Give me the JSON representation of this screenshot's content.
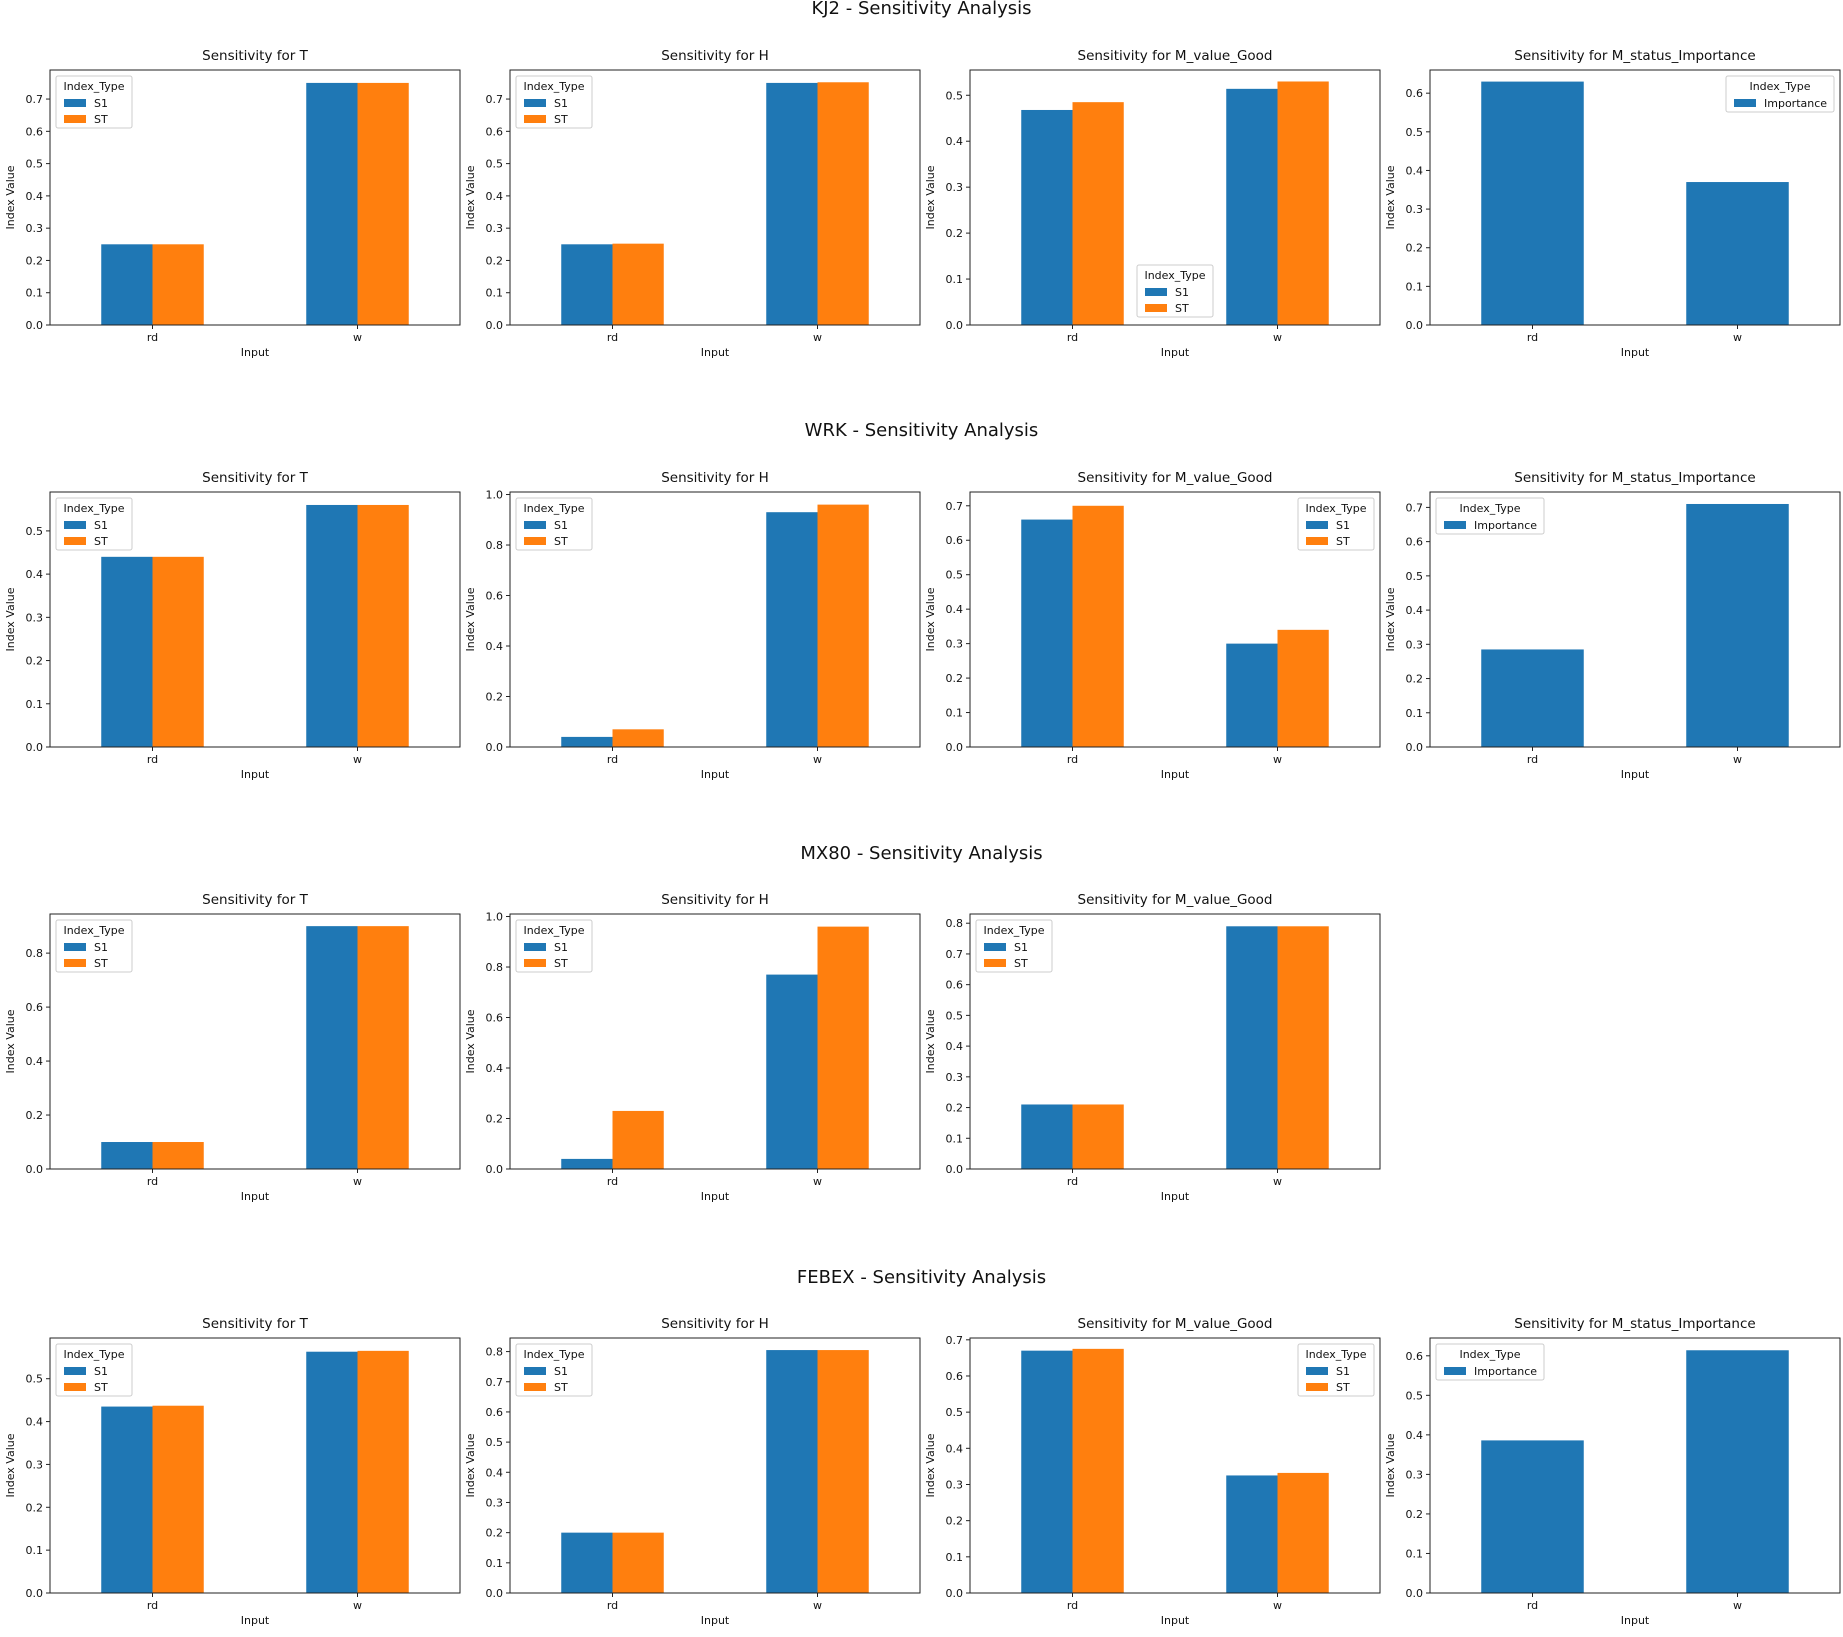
{
  "colors": {
    "s1": "#1f77b4",
    "st": "#ff7f0e",
    "importance": "#1f77b4",
    "axis": "#222222",
    "legend_border": "#cccccc"
  },
  "chart_data": [
    {
      "group": "KJ2 - Sensitivity Analysis",
      "panels": [
        {
          "type": "bar",
          "title": "Sensitivity for T",
          "categories": [
            "rd",
            "w"
          ],
          "xlabel": "Input",
          "ylabel": "Index Value",
          "ylim": [
            0,
            0.79
          ],
          "yticks": [
            "0.0",
            "0.1",
            "0.2",
            "0.3",
            "0.4",
            "0.5",
            "0.6",
            "0.7"
          ],
          "legend": {
            "title": "Index_Type",
            "loc": "upper-left"
          },
          "series": [
            {
              "name": "S1",
              "color": "#1f77b4",
              "values": [
                0.25,
                0.75
              ]
            },
            {
              "name": "ST",
              "color": "#ff7f0e",
              "values": [
                0.25,
                0.75
              ]
            }
          ]
        },
        {
          "type": "bar",
          "title": "Sensitivity for H",
          "categories": [
            "rd",
            "w"
          ],
          "xlabel": "Input",
          "ylabel": "Index Value",
          "ylim": [
            0,
            0.79
          ],
          "yticks": [
            "0.0",
            "0.1",
            "0.2",
            "0.3",
            "0.4",
            "0.5",
            "0.6",
            "0.7"
          ],
          "legend": {
            "title": "Index_Type",
            "loc": "upper-left"
          },
          "series": [
            {
              "name": "S1",
              "color": "#1f77b4",
              "values": [
                0.25,
                0.75
              ]
            },
            {
              "name": "ST",
              "color": "#ff7f0e",
              "values": [
                0.252,
                0.752
              ]
            }
          ]
        },
        {
          "type": "bar",
          "title": "Sensitivity for M_value_Good",
          "categories": [
            "rd",
            "w"
          ],
          "xlabel": "Input",
          "ylabel": "Index Value",
          "ylim": [
            0,
            0.555
          ],
          "yticks": [
            "0.0",
            "0.1",
            "0.2",
            "0.3",
            "0.4",
            "0.5"
          ],
          "legend": {
            "title": "Index_Type",
            "loc": "lower-center"
          },
          "series": [
            {
              "name": "S1",
              "color": "#1f77b4",
              "values": [
                0.468,
                0.514
              ]
            },
            {
              "name": "ST",
              "color": "#ff7f0e",
              "values": [
                0.485,
                0.53
              ]
            }
          ]
        },
        {
          "type": "bar",
          "title": "Sensitivity for M_status_Importance",
          "categories": [
            "rd",
            "w"
          ],
          "xlabel": "Input",
          "ylabel": "Index Value",
          "ylim": [
            0,
            0.66
          ],
          "yticks": [
            "0.0",
            "0.1",
            "0.2",
            "0.3",
            "0.4",
            "0.5",
            "0.6"
          ],
          "legend": {
            "title": "Index_Type",
            "loc": "upper-right"
          },
          "series": [
            {
              "name": "Importance",
              "color": "#1f77b4",
              "values": [
                0.63,
                0.37
              ]
            }
          ]
        }
      ]
    },
    {
      "group": "WRK - Sensitivity Analysis",
      "panels": [
        {
          "type": "bar",
          "title": "Sensitivity for T",
          "categories": [
            "rd",
            "w"
          ],
          "xlabel": "Input",
          "ylabel": "Index Value",
          "ylim": [
            0,
            0.59
          ],
          "yticks": [
            "0.0",
            "0.1",
            "0.2",
            "0.3",
            "0.4",
            "0.5"
          ],
          "legend": {
            "title": "Index_Type",
            "loc": "upper-left"
          },
          "series": [
            {
              "name": "S1",
              "color": "#1f77b4",
              "values": [
                0.44,
                0.56
              ]
            },
            {
              "name": "ST",
              "color": "#ff7f0e",
              "values": [
                0.44,
                0.56
              ]
            }
          ]
        },
        {
          "type": "bar",
          "title": "Sensitivity for H",
          "categories": [
            "rd",
            "w"
          ],
          "xlabel": "Input",
          "ylabel": "Index Value",
          "ylim": [
            0,
            1.01
          ],
          "yticks": [
            "0.0",
            "0.2",
            "0.4",
            "0.6",
            "0.8",
            "1.0"
          ],
          "legend": {
            "title": "Index_Type",
            "loc": "upper-left"
          },
          "series": [
            {
              "name": "S1",
              "color": "#1f77b4",
              "values": [
                0.04,
                0.93
              ]
            },
            {
              "name": "ST",
              "color": "#ff7f0e",
              "values": [
                0.07,
                0.96
              ]
            }
          ]
        },
        {
          "type": "bar",
          "title": "Sensitivity for M_value_Good",
          "categories": [
            "rd",
            "w"
          ],
          "xlabel": "Input",
          "ylabel": "Index Value",
          "ylim": [
            0,
            0.74
          ],
          "yticks": [
            "0.0",
            "0.1",
            "0.2",
            "0.3",
            "0.4",
            "0.5",
            "0.6",
            "0.7"
          ],
          "legend": {
            "title": "Index_Type",
            "loc": "upper-right"
          },
          "series": [
            {
              "name": "S1",
              "color": "#1f77b4",
              "values": [
                0.66,
                0.3
              ]
            },
            {
              "name": "ST",
              "color": "#ff7f0e",
              "values": [
                0.7,
                0.34
              ]
            }
          ]
        },
        {
          "type": "bar",
          "title": "Sensitivity for M_status_Importance",
          "categories": [
            "rd",
            "w"
          ],
          "xlabel": "Input",
          "ylabel": "Index Value",
          "ylim": [
            0,
            0.745
          ],
          "yticks": [
            "0.0",
            "0.1",
            "0.2",
            "0.3",
            "0.4",
            "0.5",
            "0.6",
            "0.7"
          ],
          "legend": {
            "title": "Index_Type",
            "loc": "upper-left"
          },
          "series": [
            {
              "name": "Importance",
              "color": "#1f77b4",
              "values": [
                0.285,
                0.71
              ]
            }
          ]
        }
      ]
    },
    {
      "group": "MX80 - Sensitivity Analysis",
      "panels": [
        {
          "type": "bar",
          "title": "Sensitivity for T",
          "categories": [
            "rd",
            "w"
          ],
          "xlabel": "Input",
          "ylabel": "Index Value",
          "ylim": [
            0,
            0.945
          ],
          "yticks": [
            "0.0",
            "0.2",
            "0.4",
            "0.6",
            "0.8"
          ],
          "legend": {
            "title": "Index_Type",
            "loc": "upper-left"
          },
          "series": [
            {
              "name": "S1",
              "color": "#1f77b4",
              "values": [
                0.1,
                0.9
              ]
            },
            {
              "name": "ST",
              "color": "#ff7f0e",
              "values": [
                0.1,
                0.9
              ]
            }
          ]
        },
        {
          "type": "bar",
          "title": "Sensitivity for H",
          "categories": [
            "rd",
            "w"
          ],
          "xlabel": "Input",
          "ylabel": "Index Value",
          "ylim": [
            0,
            1.01
          ],
          "yticks": [
            "0.0",
            "0.2",
            "0.4",
            "0.6",
            "0.8",
            "1.0"
          ],
          "legend": {
            "title": "Index_Type",
            "loc": "upper-left"
          },
          "series": [
            {
              "name": "S1",
              "color": "#1f77b4",
              "values": [
                0.04,
                0.77
              ]
            },
            {
              "name": "ST",
              "color": "#ff7f0e",
              "values": [
                0.23,
                0.96
              ]
            }
          ]
        },
        {
          "type": "bar",
          "title": "Sensitivity for M_value_Good",
          "categories": [
            "rd",
            "w"
          ],
          "xlabel": "Input",
          "ylabel": "Index Value",
          "ylim": [
            0,
            0.83
          ],
          "yticks": [
            "0.0",
            "0.1",
            "0.2",
            "0.3",
            "0.4",
            "0.5",
            "0.6",
            "0.7",
            "0.8"
          ],
          "legend": {
            "title": "Index_Type",
            "loc": "upper-left"
          },
          "series": [
            {
              "name": "S1",
              "color": "#1f77b4",
              "values": [
                0.21,
                0.79
              ]
            },
            {
              "name": "ST",
              "color": "#ff7f0e",
              "values": [
                0.21,
                0.79
              ]
            }
          ]
        }
      ]
    },
    {
      "group": "FEBEX - Sensitivity Analysis",
      "panels": [
        {
          "type": "bar",
          "title": "Sensitivity for T",
          "categories": [
            "rd",
            "w"
          ],
          "xlabel": "Input",
          "ylabel": "Index Value",
          "ylim": [
            0,
            0.595
          ],
          "yticks": [
            "0.0",
            "0.1",
            "0.2",
            "0.3",
            "0.4",
            "0.5"
          ],
          "legend": {
            "title": "Index_Type",
            "loc": "upper-left"
          },
          "series": [
            {
              "name": "S1",
              "color": "#1f77b4",
              "values": [
                0.435,
                0.563
              ]
            },
            {
              "name": "ST",
              "color": "#ff7f0e",
              "values": [
                0.437,
                0.565
              ]
            }
          ]
        },
        {
          "type": "bar",
          "title": "Sensitivity for H",
          "categories": [
            "rd",
            "w"
          ],
          "xlabel": "Input",
          "ylabel": "Index Value",
          "ylim": [
            0,
            0.845
          ],
          "yticks": [
            "0.0",
            "0.1",
            "0.2",
            "0.3",
            "0.4",
            "0.5",
            "0.6",
            "0.7",
            "0.8"
          ],
          "legend": {
            "title": "Index_Type",
            "loc": "upper-left"
          },
          "series": [
            {
              "name": "S1",
              "color": "#1f77b4",
              "values": [
                0.2,
                0.805
              ]
            },
            {
              "name": "ST",
              "color": "#ff7f0e",
              "values": [
                0.2,
                0.805
              ]
            }
          ]
        },
        {
          "type": "bar",
          "title": "Sensitivity for M_value_Good",
          "categories": [
            "rd",
            "w"
          ],
          "xlabel": "Input",
          "ylabel": "Index Value",
          "ylim": [
            0,
            0.705
          ],
          "yticks": [
            "0.0",
            "0.1",
            "0.2",
            "0.3",
            "0.4",
            "0.5",
            "0.6",
            "0.7"
          ],
          "legend": {
            "title": "Index_Type",
            "loc": "upper-right"
          },
          "series": [
            {
              "name": "S1",
              "color": "#1f77b4",
              "values": [
                0.67,
                0.325
              ]
            },
            {
              "name": "ST",
              "color": "#ff7f0e",
              "values": [
                0.675,
                0.332
              ]
            }
          ]
        },
        {
          "type": "bar",
          "title": "Sensitivity for M_status_Importance",
          "categories": [
            "rd",
            "w"
          ],
          "xlabel": "Input",
          "ylabel": "Index Value",
          "ylim": [
            0,
            0.645
          ],
          "yticks": [
            "0.0",
            "0.1",
            "0.2",
            "0.3",
            "0.4",
            "0.5",
            "0.6"
          ],
          "legend": {
            "title": "Index_Type",
            "loc": "upper-left"
          },
          "series": [
            {
              "name": "Importance",
              "color": "#1f77b4",
              "values": [
                0.386,
                0.614
              ]
            }
          ]
        }
      ]
    }
  ]
}
